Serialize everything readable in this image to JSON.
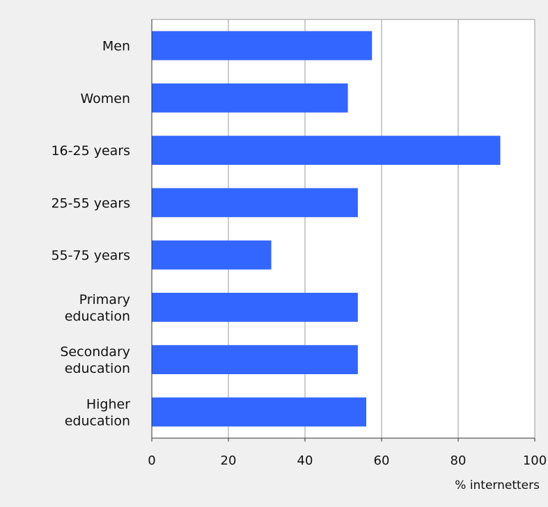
{
  "chart_data": {
    "type": "bar",
    "orientation": "horizontal",
    "categories": [
      "Men",
      "Women",
      "16-25 years",
      "25-55 years",
      "55-75 years",
      "Primary education",
      "Secondary education",
      "Higher education"
    ],
    "category_lines": [
      [
        "Men"
      ],
      [
        "Women"
      ],
      [
        "16-25 years"
      ],
      [
        "25-55 years"
      ],
      [
        "55-75 years"
      ],
      [
        "Primary",
        "education"
      ],
      [
        "Secondary",
        "education"
      ],
      [
        "Higher",
        "education"
      ]
    ],
    "values": [
      57.5,
      51.2,
      91.0,
      53.8,
      31.2,
      53.8,
      53.8,
      56.0
    ],
    "xlim": [
      0,
      100
    ],
    "xticks": [
      0,
      20,
      40,
      60,
      80,
      100
    ],
    "xlabel": "% internetters",
    "ylabel": "",
    "title": "",
    "grid": true,
    "bar_color": "#3366ff",
    "plot_background": "#ffffff",
    "grid_color": "#9a9a9a"
  }
}
